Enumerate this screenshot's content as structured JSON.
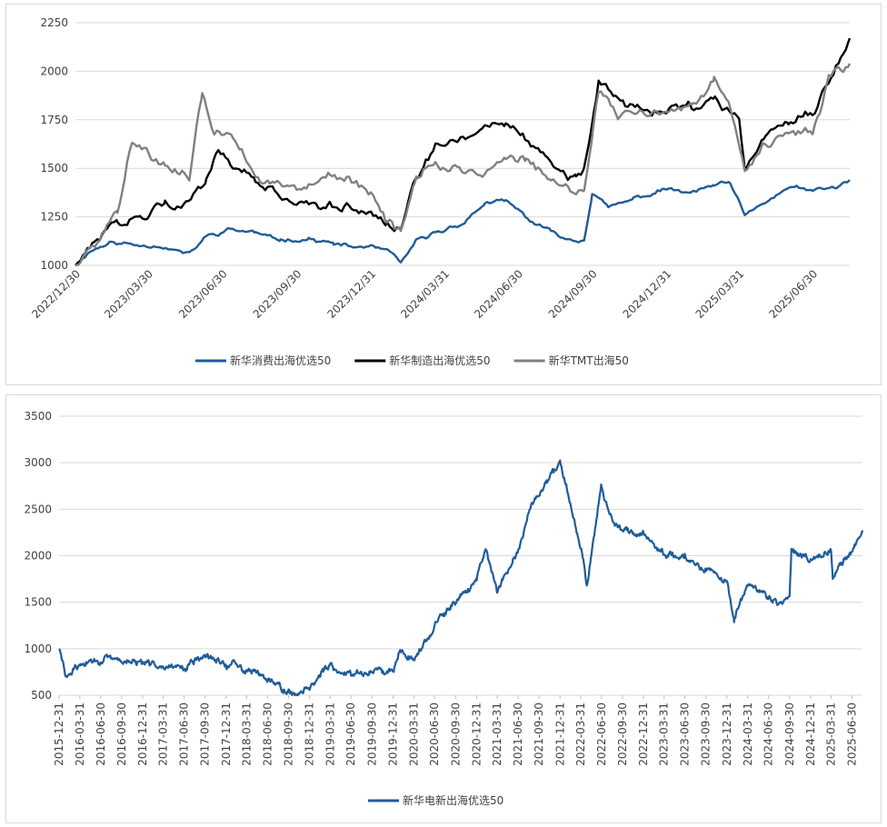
{
  "colors": {
    "consumer": "#1F5C99",
    "manufacturing": "#000000",
    "tmt": "#808080",
    "ev": "#1F5C99",
    "grid": "#D9D9D9"
  },
  "chart_data": [
    {
      "type": "line",
      "title": "",
      "xlabel": "",
      "ylabel": "",
      "ylim": [
        1000,
        2250
      ],
      "yticks": [
        "1000",
        "1250",
        "1500",
        "1750",
        "2000",
        "2250"
      ],
      "x_range": [
        "2022/12/30",
        "2025/08/15"
      ],
      "x_ticks": [
        "2022/12/30",
        "2023/03/30",
        "2023/06/30",
        "2023/09/30",
        "2023/12/31",
        "2024/03/31",
        "2024/06/30",
        "2024/09/30",
        "2024/12/31",
        "2025/03/31",
        "2025/06/30"
      ],
      "grid": true,
      "legend": "bottom",
      "series": [
        {
          "name": "新华消费出海优选50",
          "color_key": "consumer",
          "x": [
            "2022/12/30",
            "2023/01/15",
            "2023/02/10",
            "2023/03/10",
            "2023/04/15",
            "2023/05/20",
            "2023/06/10",
            "2023/07/10",
            "2023/08/10",
            "2023/09/10",
            "2023/10/15",
            "2023/11/15",
            "2023/12/10",
            "2023/12/31",
            "2024/01/20",
            "2024/02/06",
            "2024/02/25",
            "2024/03/20",
            "2024/04/25",
            "2024/05/20",
            "2024/06/15",
            "2024/07/15",
            "2024/08/10",
            "2024/09/10",
            "2024/09/20",
            "2024/09/30",
            "2024/10/20",
            "2024/11/20",
            "2024/12/31",
            "2025/01/31",
            "2025/02/28",
            "2025/03/20",
            "2025/04/07",
            "2025/04/25",
            "2025/05/20",
            "2025/06/10",
            "2025/06/30",
            "2025/07/31",
            "2025/08/15"
          ],
          "y": [
            1000,
            1070,
            1120,
            1110,
            1100,
            1060,
            1150,
            1190,
            1170,
            1130,
            1140,
            1110,
            1090,
            1095,
            1080,
            1010,
            1120,
            1170,
            1220,
            1320,
            1330,
            1230,
            1170,
            1130,
            1140,
            1380,
            1300,
            1340,
            1390,
            1370,
            1410,
            1420,
            1250,
            1300,
            1370,
            1410,
            1380,
            1400,
            1440
          ]
        },
        {
          "name": "新华制造出海优选50",
          "color_key": "manufacturing",
          "x": [
            "2022/12/30",
            "2023/01/20",
            "2023/02/20",
            "2023/03/20",
            "2023/04/20",
            "2023/05/10",
            "2023/06/10",
            "2023/06/25",
            "2023/07/15",
            "2023/08/10",
            "2023/09/15",
            "2023/10/15",
            "2023/11/10",
            "2023/12/10",
            "2023/12/31",
            "2024/01/20",
            "2024/02/06",
            "2024/02/25",
            "2024/03/20",
            "2024/04/20",
            "2024/05/20",
            "2024/06/15",
            "2024/07/10",
            "2024/08/10",
            "2024/09/10",
            "2024/09/20",
            "2024/10/08",
            "2024/11/01",
            "2024/12/01",
            "2024/12/31",
            "2025/01/31",
            "2025/03/01",
            "2025/03/31",
            "2025/04/07",
            "2025/04/30",
            "2025/05/31",
            "2025/06/30",
            "2025/07/20",
            "2025/08/15"
          ],
          "y": [
            1000,
            1100,
            1200,
            1250,
            1350,
            1320,
            1430,
            1570,
            1480,
            1430,
            1340,
            1300,
            1320,
            1300,
            1290,
            1220,
            1190,
            1440,
            1610,
            1650,
            1710,
            1740,
            1640,
            1540,
            1450,
            1480,
            1940,
            1850,
            1790,
            1800,
            1820,
            1830,
            1770,
            1520,
            1670,
            1760,
            1800,
            1950,
            2170
          ]
        },
        {
          "name": "新华TMT出海50",
          "color_key": "tmt",
          "x": [
            "2022/12/30",
            "2023/01/20",
            "2023/02/20",
            "2023/03/10",
            "2023/03/31",
            "2023/04/20",
            "2023/05/20",
            "2023/06/05",
            "2023/06/20",
            "2023/07/15",
            "2023/08/10",
            "2023/09/15",
            "2023/10/15",
            "2023/11/10",
            "2023/12/10",
            "2023/12/31",
            "2024/01/20",
            "2024/02/06",
            "2024/02/25",
            "2024/03/20",
            "2024/04/20",
            "2024/05/20",
            "2024/06/15",
            "2024/07/10",
            "2024/08/10",
            "2024/09/10",
            "2024/09/20",
            "2024/10/08",
            "2024/11/01",
            "2024/12/01",
            "2024/12/31",
            "2025/01/31",
            "2025/02/28",
            "2025/03/20",
            "2025/04/07",
            "2025/04/30",
            "2025/05/31",
            "2025/06/30",
            "2025/07/20",
            "2025/08/15"
          ],
          "y": [
            1000,
            1100,
            1250,
            1620,
            1580,
            1500,
            1450,
            1880,
            1690,
            1660,
            1460,
            1400,
            1420,
            1480,
            1440,
            1380,
            1230,
            1180,
            1450,
            1550,
            1470,
            1500,
            1560,
            1540,
            1440,
            1380,
            1420,
            1900,
            1760,
            1760,
            1790,
            1830,
            1950,
            1820,
            1480,
            1600,
            1680,
            1700,
            1950,
            2040
          ]
        }
      ]
    },
    {
      "type": "line",
      "title": "",
      "xlabel": "",
      "ylabel": "",
      "ylim": [
        500,
        3500
      ],
      "yticks": [
        "500",
        "1000",
        "1500",
        "2000",
        "2500",
        "3000",
        "3500"
      ],
      "x_range": [
        "2015-12-31",
        "2025-08-15"
      ],
      "x_ticks": [
        "2015-12-31",
        "2016-03-31",
        "2016-06-30",
        "2016-09-30",
        "2016-12-31",
        "2017-03-31",
        "2017-06-30",
        "2017-09-30",
        "2017-12-31",
        "2018-03-31",
        "2018-06-30",
        "2018-09-30",
        "2018-12-31",
        "2019-03-31",
        "2019-06-30",
        "2019-09-30",
        "2019-12-31",
        "2020-03-31",
        "2020-06-30",
        "2020-09-30",
        "2020-12-31",
        "2021-03-31",
        "2021-06-30",
        "2021-09-30",
        "2021-12-31",
        "2022-03-31",
        "2022-06-30",
        "2022-09-30",
        "2022-12-31",
        "2023-03-31",
        "2023-06-30",
        "2023-09-30",
        "2023-12-31",
        "2024-03-31",
        "2024-06-30",
        "2024-09-30",
        "2024-12-31",
        "2025-03-31",
        "2025-06-30"
      ],
      "grid": true,
      "legend": "bottom",
      "series": [
        {
          "name": "新华电新出海优选50",
          "color_key": "ev",
          "x": [
            "2015-12-31",
            "2016-01-31",
            "2016-03-31",
            "2016-06-30",
            "2016-09-30",
            "2016-12-31",
            "2017-03-31",
            "2017-06-30",
            "2017-09-30",
            "2017-12-31",
            "2018-03-31",
            "2018-06-30",
            "2018-09-30",
            "2018-10-31",
            "2018-12-31",
            "2019-03-31",
            "2019-04-30",
            "2019-06-30",
            "2019-09-30",
            "2019-12-31",
            "2020-01-31",
            "2020-03-31",
            "2020-06-30",
            "2020-09-30",
            "2020-12-31",
            "2021-02-10",
            "2021-03-31",
            "2021-06-30",
            "2021-08-31",
            "2021-09-30",
            "2021-11-30",
            "2021-12-31",
            "2022-03-31",
            "2022-04-27",
            "2022-06-30",
            "2022-08-10",
            "2022-09-30",
            "2022-12-31",
            "2023-03-31",
            "2023-06-30",
            "2023-09-30",
            "2023-12-31",
            "2024-01-31",
            "2024-03-31",
            "2024-06-30",
            "2024-08-31",
            "2024-09-30",
            "2024-10-08",
            "2024-12-31",
            "2025-03-31",
            "2025-04-07",
            "2025-05-31",
            "2025-06-30",
            "2025-08-15"
          ],
          "y": [
            1000,
            700,
            820,
            880,
            870,
            840,
            830,
            800,
            930,
            830,
            780,
            700,
            550,
            500,
            600,
            820,
            740,
            740,
            740,
            780,
            1000,
            880,
            1250,
            1500,
            1750,
            2050,
            1600,
            2050,
            2600,
            2650,
            2900,
            3000,
            2100,
            1700,
            2750,
            2400,
            2250,
            2250,
            2000,
            2000,
            1850,
            1700,
            1300,
            1700,
            1550,
            1500,
            1550,
            2050,
            1950,
            2050,
            1750,
            1950,
            2050,
            2250
          ]
        }
      ]
    }
  ]
}
